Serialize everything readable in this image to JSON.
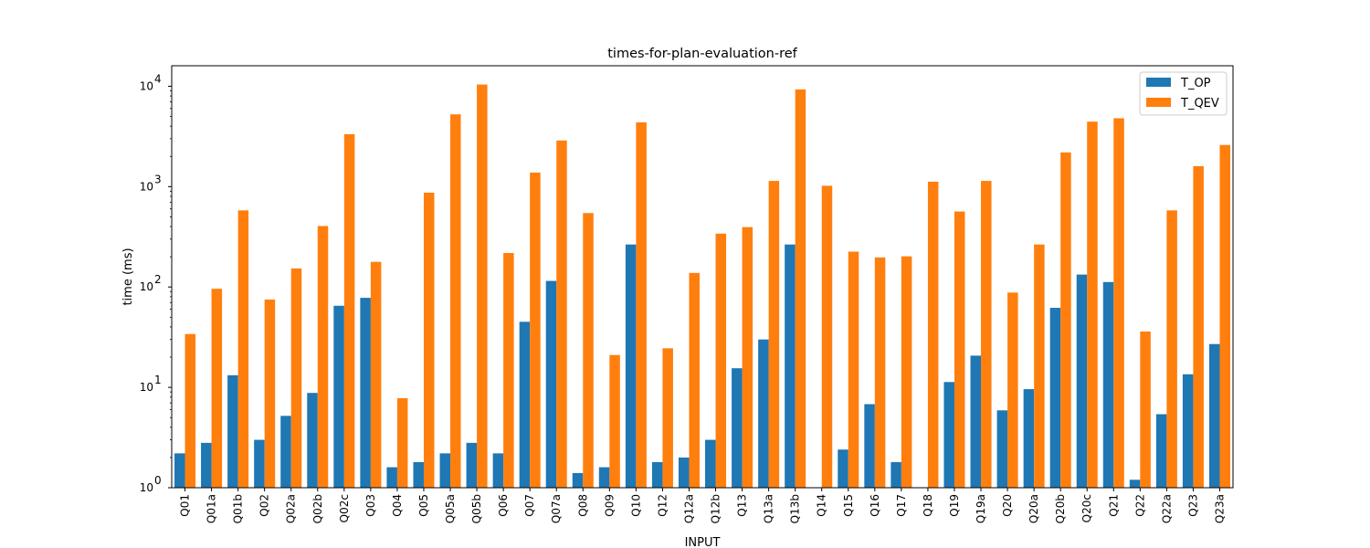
{
  "chart_data": {
    "type": "bar",
    "title": "times-for-plan-evaluation-ref",
    "xlabel": "INPUT",
    "ylabel": "time (ms)",
    "yscale": "log",
    "ylim": [
      1,
      16000
    ],
    "yticks": [
      {
        "value": 1,
        "base": "10",
        "exp": "0"
      },
      {
        "value": 10,
        "base": "10",
        "exp": "1"
      },
      {
        "value": 100,
        "base": "10",
        "exp": "2"
      },
      {
        "value": 1000,
        "base": "10",
        "exp": "3"
      },
      {
        "value": 10000,
        "base": "10",
        "exp": "4"
      }
    ],
    "grid": false,
    "legend_position": "top-right",
    "categories": [
      "Q01",
      "Q01a",
      "Q01b",
      "Q02",
      "Q02a",
      "Q02b",
      "Q02c",
      "Q03",
      "Q04",
      "Q05",
      "Q05a",
      "Q05b",
      "Q06",
      "Q07",
      "Q07a",
      "Q08",
      "Q09",
      "Q10",
      "Q12",
      "Q12a",
      "Q12b",
      "Q13",
      "Q13a",
      "Q13b",
      "Q14",
      "Q15",
      "Q16",
      "Q17",
      "Q18",
      "Q19",
      "Q19a",
      "Q20",
      "Q20a",
      "Q20b",
      "Q20c",
      "Q21",
      "Q22",
      "Q22a",
      "Q23",
      "Q23a"
    ],
    "series": [
      {
        "name": "T_OP",
        "color": "#1f77b4",
        "values": [
          2.2,
          2.8,
          13.2,
          3.0,
          5.2,
          8.8,
          65,
          78,
          1.6,
          1.8,
          2.2,
          2.8,
          2.2,
          45,
          115,
          1.4,
          1.6,
          265,
          1.8,
          2.0,
          3.0,
          15.5,
          30,
          265,
          1.0,
          2.4,
          6.8,
          1.8,
          1.0,
          11.3,
          20.7,
          5.9,
          9.6,
          62,
          133,
          112,
          1.2,
          5.4,
          13.5,
          27
        ]
      },
      {
        "name": "T_QEV",
        "color": "#ff7f0e",
        "values": [
          34,
          96,
          580,
          75,
          153,
          405,
          3330,
          178,
          7.8,
          870,
          5250,
          10400,
          218,
          1380,
          2880,
          545,
          21,
          4370,
          24.5,
          138,
          340,
          395,
          1140,
          9300,
          1020,
          225,
          197,
          202,
          1120,
          565,
          1140,
          88,
          265,
          2190,
          4440,
          4800,
          36,
          580,
          1600,
          2600
        ]
      }
    ]
  }
}
